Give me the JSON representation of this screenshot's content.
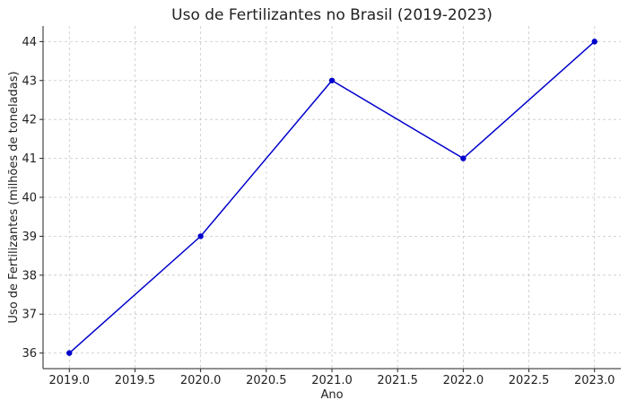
{
  "chart_data": {
    "type": "line",
    "title": "Uso de Fertilizantes no Brasil (2019-2023)",
    "xlabel": "Ano",
    "ylabel": "Uso de Fertilizantes (milhões de toneladas)",
    "x": [
      2019,
      2020,
      2021,
      2022,
      2023
    ],
    "series": [
      {
        "values": [
          36,
          39,
          43,
          41,
          44
        ],
        "color": "#0000cc"
      }
    ],
    "xlim": [
      2018.8,
      2023.2
    ],
    "ylim": [
      35.6,
      44.4
    ],
    "xticks": [
      2019.0,
      2019.5,
      2020.0,
      2020.5,
      2021.0,
      2021.5,
      2022.0,
      2022.5,
      2023.0
    ],
    "xtick_labels": [
      "2019.0",
      "2019.5",
      "2020.0",
      "2020.5",
      "2021.0",
      "2021.5",
      "2022.0",
      "2022.5",
      "2023.0"
    ],
    "yticks": [
      36,
      37,
      38,
      39,
      40,
      41,
      42,
      43,
      44
    ],
    "ytick_labels": [
      "36",
      "37",
      "38",
      "39",
      "40",
      "41",
      "42",
      "43",
      "44"
    ],
    "grid": true,
    "marker": "circle"
  }
}
